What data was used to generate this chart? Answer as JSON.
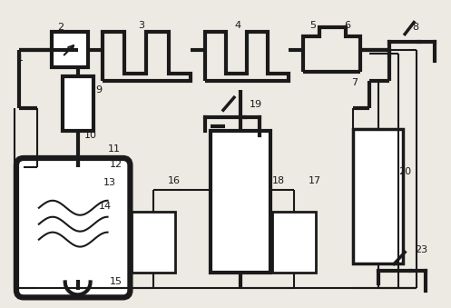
{
  "bg": "#ede9e3",
  "lc": "#1a1a1a",
  "tlw": 3.0,
  "nlw": 1.5,
  "fs": 8
}
